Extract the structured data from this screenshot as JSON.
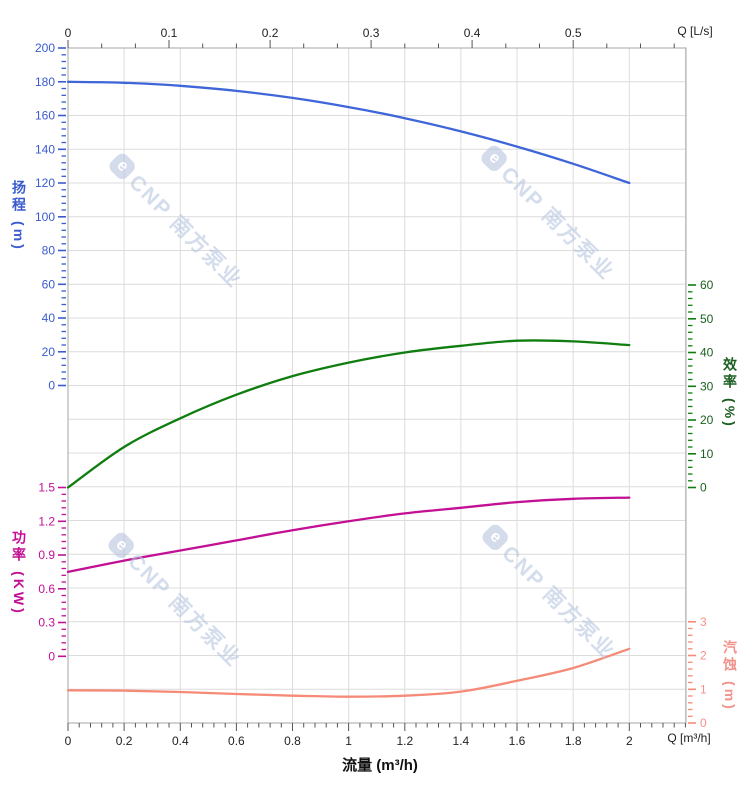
{
  "chart_data": {
    "type": "line",
    "description": "Pump performance curves: head, efficiency, power, NPSH vs flow",
    "x_axis_bottom": {
      "title": "流量 (m³/h)",
      "unit_label": "Q [m³/h]",
      "range": [
        0,
        2.2
      ],
      "major_ticks": [
        0,
        0.2,
        0.4,
        0.6,
        0.8,
        1,
        1.2,
        1.4,
        1.6,
        1.8,
        2
      ],
      "minor_step": 0.04,
      "grid": true
    },
    "x_axis_top": {
      "unit_label": "Q [L/s]",
      "range": [
        0,
        0.611
      ],
      "major_ticks": [
        0,
        0.1,
        0.2,
        0.3,
        0.4,
        0.5
      ],
      "minor_per_major": 3
    },
    "y_axes": [
      {
        "id": "head",
        "title": "扬程 (m)",
        "side": "left",
        "range": [
          0,
          200
        ],
        "major_ticks": [
          200,
          180,
          160,
          140,
          120,
          100,
          80,
          60,
          40,
          20,
          0
        ],
        "minor_step": 4,
        "tick_color": "#3A5BD0",
        "label_color": "#3A5BD0"
      },
      {
        "id": "efficiency",
        "title": "效率 (%)",
        "side": "right",
        "range": [
          0,
          60
        ],
        "major_ticks": [
          60,
          50,
          40,
          30,
          20,
          10,
          0
        ],
        "minor_step": 2,
        "tick_color": "#0F7D0F",
        "label_color": "#1C5E20"
      },
      {
        "id": "power",
        "title": "功率 (KW)",
        "side": "left",
        "range": [
          0,
          1.5
        ],
        "major_ticks": [
          1.5,
          1.2,
          0.9,
          0.6,
          0.3,
          0
        ],
        "minor_step": 0.06,
        "tick_color": "#C30F94",
        "label_color": "#C30F94"
      },
      {
        "id": "npsh",
        "title": "汽蚀 (m)",
        "side": "right",
        "range": [
          0,
          3
        ],
        "major_ticks": [
          3,
          2,
          1,
          0
        ],
        "minor_step": 0.2,
        "tick_color": "#F58A77",
        "label_color": "#F2928C"
      }
    ],
    "series": [
      {
        "name": "head",
        "axis": "head",
        "color": "#3E66D9",
        "x": [
          0,
          0.2,
          0.4,
          0.6,
          0.8,
          1.0,
          1.2,
          1.4,
          1.6,
          1.8,
          2.0
        ],
        "y": [
          180,
          179.4,
          177.6,
          174.6,
          170.4,
          165,
          158.4,
          150.6,
          141.6,
          131.4,
          120
        ]
      },
      {
        "name": "efficiency",
        "axis": "efficiency",
        "color": "#0F7D0F",
        "x": [
          0,
          0.2,
          0.4,
          0.6,
          0.8,
          1.0,
          1.2,
          1.4,
          1.6,
          1.8,
          2.0
        ],
        "y": [
          0,
          12,
          20.5,
          27.5,
          33,
          37,
          40,
          42,
          43.5,
          43.3,
          42.2
        ]
      },
      {
        "name": "power",
        "axis": "power",
        "color": "#C30F94",
        "x": [
          0,
          0.2,
          0.4,
          0.6,
          0.8,
          1.0,
          1.2,
          1.4,
          1.6,
          1.8,
          2.0
        ],
        "y": [
          0.75,
          0.85,
          0.94,
          1.03,
          1.12,
          1.2,
          1.27,
          1.32,
          1.37,
          1.4,
          1.41
        ]
      },
      {
        "name": "npsh",
        "axis": "npsh",
        "color": "#F58A77",
        "x": [
          0,
          0.2,
          0.4,
          0.6,
          0.8,
          1.0,
          1.2,
          1.4,
          1.6,
          1.8,
          2.0
        ],
        "y": [
          0.97,
          0.96,
          0.92,
          0.86,
          0.81,
          0.78,
          0.81,
          0.93,
          1.25,
          1.63,
          2.2
        ]
      }
    ],
    "grid_color": "#DCDCDC",
    "border_color": "#B3B3B3"
  },
  "watermark": {
    "logo_glyph": "e",
    "text": "CNP 南方泵业"
  }
}
